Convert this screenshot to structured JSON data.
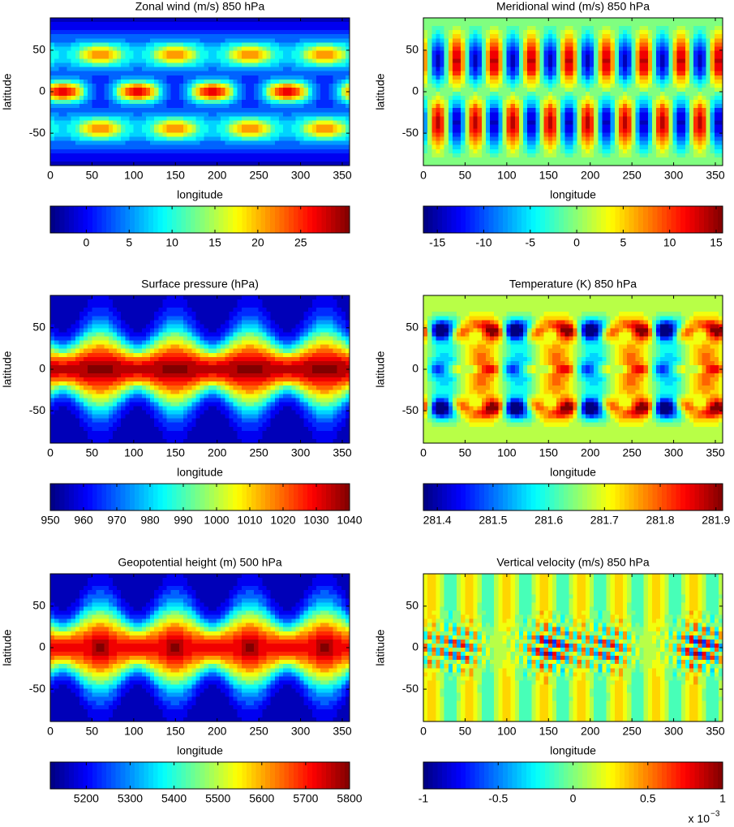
{
  "chart_data": [
    {
      "type": "contour",
      "title": "Zonal wind (m/s) 850 hPa",
      "xlabel": "longitude",
      "ylabel": "latitude",
      "xlim": [
        0,
        358.75
      ],
      "ylim": [
        -89,
        89
      ],
      "xticks": [
        0,
        50,
        100,
        150,
        200,
        250,
        300,
        350
      ],
      "yticks": [
        -50,
        0,
        50
      ],
      "colorbar": {
        "lim": [
          -4.2,
          30.7
        ],
        "ticks": [
          0,
          5,
          10,
          15,
          20,
          25
        ]
      }
    },
    {
      "type": "contour",
      "title": "Meridional wind (m/s) 850 hPa",
      "xlabel": "longitude",
      "ylabel": "latitude",
      "xlim": [
        0,
        358.75
      ],
      "ylim": [
        -89,
        89
      ],
      "xticks": [
        0,
        50,
        100,
        150,
        200,
        250,
        300,
        350
      ],
      "yticks": [
        -50,
        0,
        50
      ],
      "colorbar": {
        "lim": [
          -16.5,
          15.7
        ],
        "ticks": [
          -15,
          -10,
          -5,
          0,
          5,
          10,
          15
        ]
      }
    },
    {
      "type": "contour",
      "title": "Surface pressure (hPa)",
      "xlabel": "longitude",
      "ylabel": "latitude",
      "xlim": [
        0,
        358.75
      ],
      "ylim": [
        -89,
        89
      ],
      "xticks": [
        0,
        50,
        100,
        150,
        200,
        250,
        300,
        350
      ],
      "yticks": [
        -50,
        0,
        50
      ],
      "colorbar": {
        "lim": [
          950,
          1040
        ],
        "ticks": [
          950,
          960,
          970,
          980,
          990,
          1000,
          1010,
          1020,
          1030,
          1040
        ]
      }
    },
    {
      "type": "contour",
      "title": "Temperature (K) 850 hPa",
      "xlabel": "longitude",
      "ylabel": "latitude",
      "xlim": [
        0,
        358.75
      ],
      "ylim": [
        -89,
        89
      ],
      "xticks": [
        0,
        50,
        100,
        150,
        200,
        250,
        300,
        350
      ],
      "yticks": [
        -50,
        0,
        50
      ],
      "colorbar": {
        "lim": [
          281.375,
          281.912
        ],
        "ticks": [
          281.4,
          281.5,
          281.6,
          281.7,
          281.8,
          281.9
        ]
      }
    },
    {
      "type": "contour",
      "title": "Geopotential height (m) 500 hPa",
      "xlabel": "longitude",
      "ylabel": "latitude",
      "xlim": [
        0,
        358.75
      ],
      "ylim": [
        -89,
        89
      ],
      "xticks": [
        0,
        50,
        100,
        150,
        200,
        250,
        300,
        350
      ],
      "yticks": [
        -50,
        0,
        50
      ],
      "colorbar": {
        "lim": [
          5118,
          5800
        ],
        "ticks": [
          5200,
          5300,
          5400,
          5500,
          5600,
          5700,
          5800
        ]
      }
    },
    {
      "type": "contour",
      "title": "Vertical velocity (m/s) 850 hPa",
      "xlabel": "longitude",
      "ylabel": "latitude",
      "xlim": [
        0,
        358.75
      ],
      "ylim": [
        -89,
        89
      ],
      "xticks": [
        0,
        50,
        100,
        150,
        200,
        250,
        300,
        350
      ],
      "yticks": [
        -50,
        0,
        50
      ],
      "colorbar": {
        "lim": [
          -1,
          1
        ],
        "ticks": [
          -1,
          -0.5,
          0,
          0.5,
          1
        ],
        "multiplier": "x 10",
        "exponent": "−3"
      }
    }
  ]
}
